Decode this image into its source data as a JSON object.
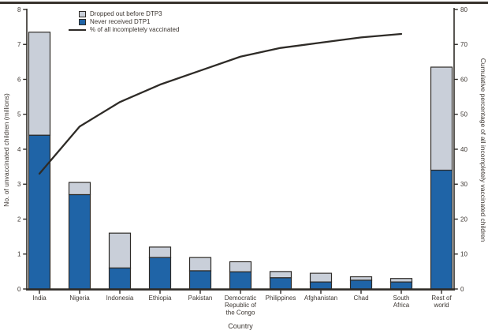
{
  "figure": {
    "background": "#ffffff",
    "top_rule_color": "#38332d"
  },
  "chart_data": {
    "type": "bar",
    "subtype": "stacked-bars-with-cumulative-percentage-line",
    "title": "",
    "categories": [
      "India",
      "Nigeria",
      "Indonesia",
      "Ethiopia",
      "Pakistan",
      "Democratic\nRepublic of\nthe Congo",
      "Philippines",
      "Afghanistan",
      "Chad",
      "South\nAfrica",
      "Rest of\nworld"
    ],
    "series": [
      {
        "name": "Never received DTP1",
        "color": "#1f64a7",
        "values": [
          4.4,
          2.7,
          0.6,
          0.9,
          0.52,
          0.49,
          0.32,
          0.2,
          0.25,
          0.2,
          3.4
        ]
      },
      {
        "name": "Dropped out before DTP3",
        "color": "#c9cfd9",
        "values": [
          2.95,
          0.35,
          1.0,
          0.3,
          0.38,
          0.29,
          0.18,
          0.25,
          0.1,
          0.1,
          2.95
        ]
      }
    ],
    "line_series": {
      "name": "% of all incompletely vaccinated",
      "color": "#2e2b27",
      "values": [
        33,
        46.5,
        53.5,
        58.5,
        62.5,
        66.5,
        69,
        70.5,
        72,
        73
      ],
      "spans_categories": "India through South Africa only"
    },
    "legend": [
      {
        "label": "Dropped out before DTP3",
        "swatch": "gray-box"
      },
      {
        "label": "Never received DTP1",
        "swatch": "blue-box"
      },
      {
        "label": "% of all incompletely vaccinated",
        "swatch": "black-line"
      }
    ],
    "left_axis": {
      "label": "No. of unvaccinated children (millions)",
      "min": 0,
      "max": 8,
      "step": 1
    },
    "right_axis": {
      "label": "Cumulative percentage of all incompletely vaccinated children",
      "min": 0,
      "max": 80,
      "step": 10
    },
    "x_axis": {
      "label": "Country"
    },
    "colors": {
      "outline": "#2e2b27",
      "text": "#3c3631"
    },
    "grid": false,
    "legend_position": "top-left-inside"
  }
}
